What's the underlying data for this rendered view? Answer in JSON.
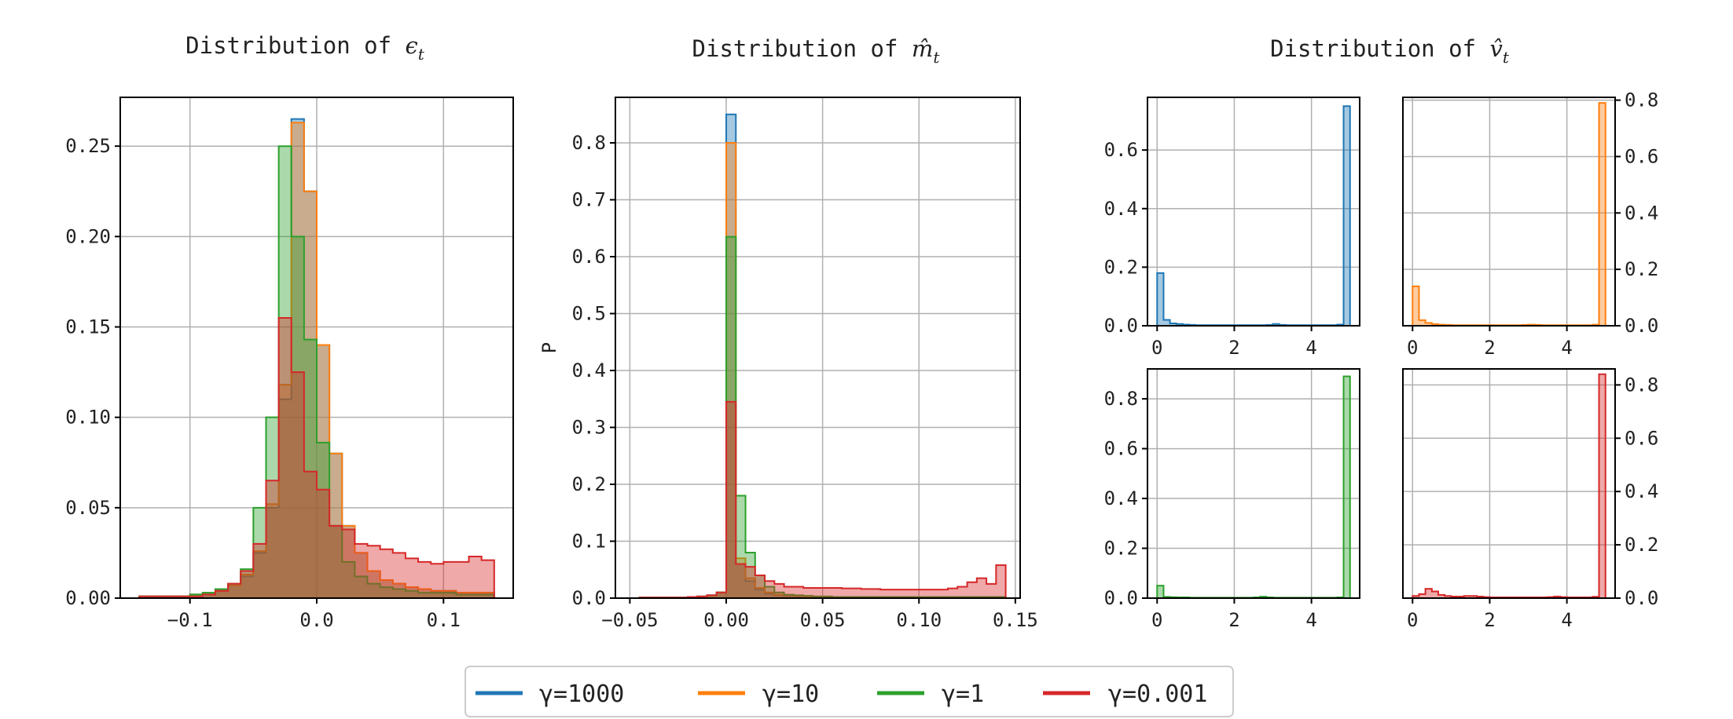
{
  "legend": {
    "entries": [
      {
        "label": "γ=1000",
        "color": "#1f77b4"
      },
      {
        "label": "γ=10",
        "color": "#ff7f0e"
      },
      {
        "label": "γ=1",
        "color": "#2ca02c"
      },
      {
        "label": "γ=0.001",
        "color": "#d62728"
      }
    ]
  },
  "chart_data": [
    {
      "id": "eps",
      "type": "histogram-step",
      "title": "Distribution of ",
      "title_symbol": "ϵ",
      "title_sub": "t",
      "xlabel": "",
      "ylabel": "",
      "xlim": [
        -0.155,
        0.155
      ],
      "ylim": [
        0,
        0.277
      ],
      "xticks": [
        -0.1,
        0.0,
        0.1
      ],
      "xtick_labels": [
        "−0.1",
        "0.0",
        "0.1"
      ],
      "yticks": [
        0.0,
        0.05,
        0.1,
        0.15,
        0.2,
        0.25
      ],
      "ytick_labels": [
        "0.00",
        "0.05",
        "0.10",
        "0.15",
        "0.20",
        "0.25"
      ],
      "ytick_side": "left",
      "grid": true,
      "bin_edges": [
        -0.14,
        -0.13,
        -0.12,
        -0.11,
        -0.1,
        -0.09,
        -0.08,
        -0.07,
        -0.06,
        -0.05,
        -0.04,
        -0.03,
        -0.02,
        -0.01,
        0.0,
        0.01,
        0.02,
        0.03,
        0.04,
        0.05,
        0.06,
        0.07,
        0.08,
        0.09,
        0.1,
        0.11,
        0.12,
        0.13,
        0.14
      ],
      "series": [
        {
          "name": "γ=1000",
          "color": "#1f77b4",
          "values": [
            0.001,
            0.001,
            0.001,
            0.001,
            0.002,
            0.003,
            0.004,
            0.007,
            0.012,
            0.025,
            0.05,
            0.11,
            0.265,
            0.225,
            0.14,
            0.08,
            0.04,
            0.025,
            0.015,
            0.01,
            0.008,
            0.006,
            0.005,
            0.004,
            0.004,
            0.003,
            0.003,
            0.003
          ]
        },
        {
          "name": "γ=10",
          "color": "#ff7f0e",
          "values": [
            0.001,
            0.001,
            0.001,
            0.001,
            0.002,
            0.003,
            0.004,
            0.007,
            0.013,
            0.026,
            0.052,
            0.118,
            0.263,
            0.225,
            0.14,
            0.08,
            0.04,
            0.025,
            0.015,
            0.01,
            0.008,
            0.006,
            0.005,
            0.004,
            0.004,
            0.003,
            0.003,
            0.003
          ]
        },
        {
          "name": "γ=1",
          "color": "#2ca02c",
          "values": [
            0.001,
            0.001,
            0.001,
            0.001,
            0.002,
            0.003,
            0.005,
            0.008,
            0.016,
            0.05,
            0.1,
            0.25,
            0.2,
            0.143,
            0.086,
            0.04,
            0.02,
            0.012,
            0.008,
            0.006,
            0.005,
            0.004,
            0.003,
            0.003,
            0.003,
            0.002,
            0.002,
            0.002
          ]
        },
        {
          "name": "γ=0.001",
          "color": "#d62728",
          "values": [
            0.001,
            0.001,
            0.001,
            0.001,
            0.001,
            0.002,
            0.004,
            0.008,
            0.015,
            0.03,
            0.065,
            0.155,
            0.125,
            0.07,
            0.06,
            0.04,
            0.038,
            0.03,
            0.029,
            0.027,
            0.025,
            0.022,
            0.02,
            0.019,
            0.02,
            0.02,
            0.023,
            0.021
          ]
        }
      ]
    },
    {
      "id": "mhat",
      "type": "histogram-step",
      "title": "Distribution of ",
      "title_symbol": "m̂",
      "title_sub": "t",
      "xlabel": "",
      "ylabel": "P",
      "xlim": [
        -0.0575,
        0.1525
      ],
      "ylim": [
        0,
        0.88
      ],
      "xticks": [
        -0.05,
        0.0,
        0.05,
        0.1,
        0.15
      ],
      "xtick_labels": [
        "−0.05",
        "0.00",
        "0.05",
        "0.10",
        "0.15"
      ],
      "yticks": [
        0.0,
        0.1,
        0.2,
        0.3,
        0.4,
        0.5,
        0.6,
        0.7,
        0.8
      ],
      "ytick_labels": [
        "0.0",
        "0.1",
        "0.2",
        "0.3",
        "0.4",
        "0.5",
        "0.6",
        "0.7",
        "0.8"
      ],
      "ytick_side": "left",
      "grid": true,
      "bin_edges": [
        -0.045,
        -0.04,
        -0.035,
        -0.03,
        -0.025,
        -0.02,
        -0.015,
        -0.01,
        -0.005,
        0.0,
        0.005,
        0.01,
        0.015,
        0.02,
        0.025,
        0.03,
        0.035,
        0.04,
        0.045,
        0.05,
        0.055,
        0.06,
        0.065,
        0.07,
        0.075,
        0.08,
        0.085,
        0.09,
        0.095,
        0.1,
        0.105,
        0.11,
        0.115,
        0.12,
        0.125,
        0.13,
        0.135,
        0.14,
        0.145
      ],
      "series": [
        {
          "name": "γ=1000",
          "color": "#1f77b4",
          "values": [
            0.001,
            0.001,
            0.001,
            0.001,
            0.001,
            0.002,
            0.003,
            0.005,
            0.01,
            0.85,
            0.06,
            0.03,
            0.015,
            0.008,
            0.005,
            0.004,
            0.003,
            0.003,
            0.002,
            0.002,
            0.002,
            0.002,
            0.002,
            0.002,
            0.002,
            0.002,
            0.002,
            0.002,
            0.002,
            0.002,
            0.002,
            0.002,
            0.002,
            0.002,
            0.002,
            0.002,
            0.002,
            0.002
          ]
        },
        {
          "name": "γ=10",
          "color": "#ff7f0e",
          "values": [
            0.001,
            0.001,
            0.001,
            0.001,
            0.001,
            0.002,
            0.003,
            0.005,
            0.01,
            0.8,
            0.07,
            0.035,
            0.018,
            0.01,
            0.006,
            0.005,
            0.004,
            0.003,
            0.003,
            0.002,
            0.002,
            0.002,
            0.002,
            0.002,
            0.002,
            0.002,
            0.002,
            0.002,
            0.002,
            0.002,
            0.002,
            0.002,
            0.002,
            0.002,
            0.002,
            0.002,
            0.002,
            0.002
          ]
        },
        {
          "name": "γ=1",
          "color": "#2ca02c",
          "values": [
            0.001,
            0.001,
            0.001,
            0.001,
            0.001,
            0.002,
            0.003,
            0.005,
            0.01,
            0.635,
            0.18,
            0.08,
            0.04,
            0.02,
            0.01,
            0.006,
            0.005,
            0.004,
            0.003,
            0.003,
            0.002,
            0.002,
            0.002,
            0.002,
            0.002,
            0.002,
            0.002,
            0.002,
            0.002,
            0.002,
            0.002,
            0.002,
            0.002,
            0.002,
            0.002,
            0.002,
            0.002,
            0.002
          ]
        },
        {
          "name": "γ=0.001",
          "color": "#d62728",
          "values": [
            0.001,
            0.001,
            0.001,
            0.001,
            0.001,
            0.002,
            0.003,
            0.005,
            0.01,
            0.345,
            0.06,
            0.055,
            0.04,
            0.03,
            0.025,
            0.02,
            0.02,
            0.018,
            0.018,
            0.018,
            0.018,
            0.017,
            0.017,
            0.016,
            0.016,
            0.015,
            0.015,
            0.015,
            0.015,
            0.015,
            0.015,
            0.015,
            0.017,
            0.02,
            0.028,
            0.035,
            0.025,
            0.058
          ]
        }
      ]
    },
    {
      "id": "vhat-1",
      "type": "histogram-step",
      "title": "Distribution of ",
      "title_symbol": "v̂",
      "title_sub": "t",
      "xlabel": "",
      "ylabel": "",
      "xlim": [
        -0.25,
        5.25
      ],
      "ylim": [
        0,
        0.78
      ],
      "xticks": [
        0,
        2,
        4
      ],
      "xtick_labels": [
        "0",
        "2",
        "4"
      ],
      "yticks": [
        0.0,
        0.2,
        0.4,
        0.6
      ],
      "ytick_labels": [
        "0.0",
        "0.2",
        "0.4",
        "0.6"
      ],
      "ytick_side": "left",
      "grid": true,
      "bin_edges": [
        0.0,
        0.167,
        0.333,
        0.5,
        0.667,
        0.833,
        1.0,
        1.167,
        1.333,
        1.5,
        1.667,
        1.833,
        2.0,
        2.167,
        2.333,
        2.5,
        2.667,
        2.833,
        3.0,
        3.167,
        3.333,
        3.5,
        3.667,
        3.833,
        4.0,
        4.167,
        4.333,
        4.5,
        4.667,
        4.833,
        5.0
      ],
      "series": [
        {
          "name": "γ=1000",
          "color": "#1f77b4",
          "values": [
            0.18,
            0.02,
            0.008,
            0.006,
            0.004,
            0.003,
            0.002,
            0.002,
            0.002,
            0.002,
            0.002,
            0.002,
            0.002,
            0.002,
            0.002,
            0.002,
            0.002,
            0.003,
            0.006,
            0.003,
            0.002,
            0.002,
            0.002,
            0.002,
            0.002,
            0.002,
            0.002,
            0.002,
            0.004,
            0.75
          ]
        }
      ]
    },
    {
      "id": "vhat-2",
      "type": "histogram-step",
      "title": "",
      "xlabel": "",
      "ylabel": "",
      "xlim": [
        -0.25,
        5.25
      ],
      "ylim": [
        0,
        0.81
      ],
      "xticks": [
        0,
        2,
        4
      ],
      "xtick_labels": [
        "0",
        "2",
        "4"
      ],
      "yticks": [
        0.0,
        0.2,
        0.4,
        0.6,
        0.8
      ],
      "ytick_labels": [
        "0.0",
        "0.2",
        "0.4",
        "0.6",
        "0.8"
      ],
      "ytick_side": "right",
      "grid": true,
      "bin_edges": [
        0.0,
        0.167,
        0.333,
        0.5,
        0.667,
        0.833,
        1.0,
        1.167,
        1.333,
        1.5,
        1.667,
        1.833,
        2.0,
        2.167,
        2.333,
        2.5,
        2.667,
        2.833,
        3.0,
        3.167,
        3.333,
        3.5,
        3.667,
        3.833,
        4.0,
        4.167,
        4.333,
        4.5,
        4.667,
        4.833,
        5.0
      ],
      "series": [
        {
          "name": "γ=10",
          "color": "#ff7f0e",
          "values": [
            0.14,
            0.02,
            0.01,
            0.006,
            0.004,
            0.003,
            0.002,
            0.002,
            0.002,
            0.002,
            0.002,
            0.002,
            0.002,
            0.002,
            0.002,
            0.002,
            0.002,
            0.003,
            0.004,
            0.003,
            0.002,
            0.002,
            0.002,
            0.002,
            0.002,
            0.002,
            0.002,
            0.002,
            0.004,
            0.79
          ]
        }
      ]
    },
    {
      "id": "vhat-3",
      "type": "histogram-step",
      "title": "",
      "xlabel": "",
      "ylabel": "",
      "xlim": [
        -0.25,
        5.25
      ],
      "ylim": [
        0,
        0.92
      ],
      "xticks": [
        0,
        2,
        4
      ],
      "xtick_labels": [
        "0",
        "2",
        "4"
      ],
      "yticks": [
        0.0,
        0.2,
        0.4,
        0.6,
        0.8
      ],
      "ytick_labels": [
        "0.0",
        "0.2",
        "0.4",
        "0.6",
        "0.8"
      ],
      "ytick_side": "left",
      "grid": true,
      "bin_edges": [
        0.0,
        0.167,
        0.333,
        0.5,
        0.667,
        0.833,
        1.0,
        1.167,
        1.333,
        1.5,
        1.667,
        1.833,
        2.0,
        2.167,
        2.333,
        2.5,
        2.667,
        2.833,
        3.0,
        3.167,
        3.333,
        3.5,
        3.667,
        3.833,
        4.0,
        4.167,
        4.333,
        4.5,
        4.667,
        4.833,
        5.0
      ],
      "series": [
        {
          "name": "γ=1",
          "color": "#2ca02c",
          "values": [
            0.05,
            0.005,
            0.004,
            0.003,
            0.003,
            0.002,
            0.002,
            0.002,
            0.002,
            0.002,
            0.002,
            0.002,
            0.002,
            0.002,
            0.002,
            0.003,
            0.006,
            0.003,
            0.002,
            0.002,
            0.002,
            0.002,
            0.002,
            0.002,
            0.002,
            0.002,
            0.002,
            0.002,
            0.003,
            0.89
          ]
        }
      ]
    },
    {
      "id": "vhat-4",
      "type": "histogram-step",
      "title": "",
      "xlabel": "",
      "ylabel": "",
      "xlim": [
        -0.25,
        5.25
      ],
      "ylim": [
        0,
        0.86
      ],
      "xticks": [
        0,
        2,
        4
      ],
      "xtick_labels": [
        "0",
        "2",
        "4"
      ],
      "yticks": [
        0.0,
        0.2,
        0.4,
        0.6,
        0.8
      ],
      "ytick_labels": [
        "0.0",
        "0.2",
        "0.4",
        "0.6",
        "0.8"
      ],
      "ytick_side": "right",
      "grid": true,
      "bin_edges": [
        0.0,
        0.167,
        0.333,
        0.5,
        0.667,
        0.833,
        1.0,
        1.167,
        1.333,
        1.5,
        1.667,
        1.833,
        2.0,
        2.167,
        2.333,
        2.5,
        2.667,
        2.833,
        3.0,
        3.167,
        3.333,
        3.5,
        3.667,
        3.833,
        4.0,
        4.167,
        4.333,
        4.5,
        4.667,
        4.833,
        5.0
      ],
      "series": [
        {
          "name": "γ=0.001",
          "color": "#d62728",
          "values": [
            0.008,
            0.015,
            0.035,
            0.025,
            0.012,
            0.008,
            0.006,
            0.006,
            0.008,
            0.008,
            0.006,
            0.004,
            0.003,
            0.003,
            0.003,
            0.003,
            0.003,
            0.003,
            0.003,
            0.003,
            0.003,
            0.004,
            0.006,
            0.004,
            0.003,
            0.003,
            0.003,
            0.003,
            0.005,
            0.84
          ]
        }
      ]
    }
  ]
}
